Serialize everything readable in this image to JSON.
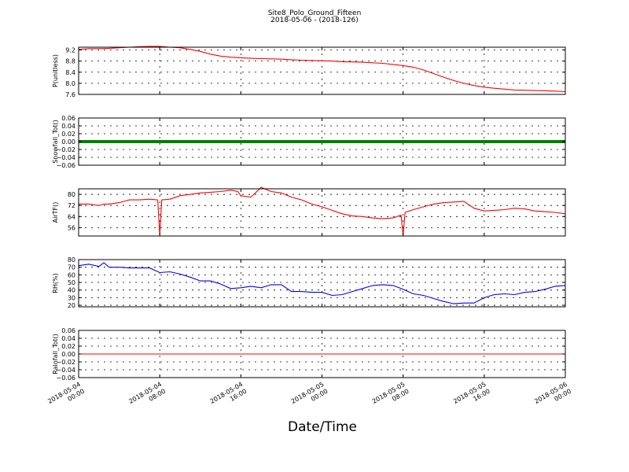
{
  "figure": {
    "title": "Site8_Polo_Ground_Fifteen",
    "subtitle": "2018-05-06 - (2018-126)",
    "xlabel": "Date/Time",
    "x_tick_labels": [
      [
        "2018-05-04",
        "00:00"
      ],
      [
        "2018-05-04",
        "08:00"
      ],
      [
        "2018-05-04",
        "16:00"
      ],
      [
        "2018-05-05",
        "00:00"
      ],
      [
        "2018-05-05",
        "08:00"
      ],
      [
        "2018-05-05",
        "16:00"
      ],
      [
        "2018-05-06",
        "00:00"
      ]
    ],
    "x_range_hours": [
      0,
      48
    ]
  },
  "chart_data": [
    {
      "type": "line",
      "ylabel": "P(unitless)",
      "ylim": [
        7.6,
        9.3
      ],
      "yticks": [
        7.6,
        8.0,
        8.4,
        8.8,
        9.2
      ],
      "ytick_labels": [
        "7.6",
        "8.0",
        "8.4",
        "8.8",
        "9.2"
      ],
      "grid": true,
      "series": [
        {
          "color": "#ff0000",
          "style": "line",
          "x": [
            0,
            1,
            2,
            3,
            4,
            5,
            6,
            7,
            8,
            9,
            10,
            11,
            12,
            13,
            14,
            15,
            16,
            17,
            18,
            19,
            20,
            21,
            22,
            23,
            24,
            25,
            26,
            27,
            28,
            29,
            30,
            31,
            32,
            33,
            34,
            35,
            36,
            37,
            38,
            39,
            40,
            41,
            42,
            43,
            44,
            45,
            46,
            47,
            48
          ],
          "y": [
            9.22,
            9.25,
            9.25,
            9.26,
            9.28,
            9.3,
            9.32,
            9.33,
            9.33,
            9.3,
            9.28,
            9.22,
            9.15,
            9.05,
            8.98,
            8.94,
            8.92,
            8.9,
            8.89,
            8.88,
            8.87,
            8.85,
            8.83,
            8.82,
            8.81,
            8.8,
            8.78,
            8.77,
            8.76,
            8.74,
            8.72,
            8.68,
            8.64,
            8.58,
            8.48,
            8.35,
            8.22,
            8.1,
            8.0,
            7.92,
            7.86,
            7.82,
            7.79,
            7.76,
            7.75,
            7.74,
            7.73,
            7.72,
            7.7
          ]
        }
      ]
    },
    {
      "type": "line",
      "ylabel": "Snowfall_Tot()",
      "ylim": [
        -0.06,
        0.06
      ],
      "yticks": [
        -0.06,
        -0.04,
        -0.02,
        0.0,
        0.02,
        0.04,
        0.06
      ],
      "ytick_labels": [
        "−0.06",
        "−0.04",
        "−0.02",
        "0.00",
        "0.02",
        "0.04",
        "0.06"
      ],
      "grid": true,
      "series": [
        {
          "color": "#008000",
          "style": "dots",
          "x": [
            0,
            48
          ],
          "y": [
            0.0,
            0.0
          ]
        }
      ]
    },
    {
      "type": "line",
      "ylabel": "AirTF()",
      "ylim": [
        50,
        84
      ],
      "yticks": [
        56,
        64,
        72,
        80
      ],
      "ytick_labels": [
        "56",
        "64",
        "72",
        "80"
      ],
      "grid": true,
      "series": [
        {
          "color": "#ff0000",
          "style": "line",
          "x": [
            0,
            1,
            2,
            2.5,
            3,
            4,
            5,
            6,
            7,
            7.8,
            8.0,
            8.2,
            9,
            10,
            11,
            12,
            13,
            14,
            15,
            15.7,
            16,
            17,
            18,
            19,
            20,
            21,
            22,
            23,
            24,
            25,
            26,
            27,
            28,
            29,
            30,
            31,
            31.8,
            32.0,
            32.2,
            33,
            34,
            35,
            36,
            37,
            38,
            39,
            40,
            41,
            42,
            43,
            44,
            45,
            46,
            47,
            48
          ],
          "y": [
            73,
            73,
            72,
            73,
            73,
            74,
            76,
            76,
            76.5,
            76,
            50.5,
            76,
            76.5,
            79,
            80,
            81,
            81.5,
            82,
            83,
            82,
            79,
            78,
            85,
            82,
            81,
            78,
            76,
            73,
            71,
            68.5,
            66,
            64.5,
            64,
            63,
            62.5,
            63,
            65,
            50.5,
            67,
            69,
            71,
            73,
            74,
            74.5,
            75,
            70,
            68,
            68.5,
            69,
            70,
            69.5,
            68,
            67.5,
            67,
            66
          ]
        }
      ]
    },
    {
      "type": "line",
      "ylabel": "RH(%)",
      "ylim": [
        18,
        80
      ],
      "yticks": [
        20,
        30,
        40,
        50,
        60,
        70,
        80
      ],
      "ytick_labels": [
        "20",
        "30",
        "40",
        "50",
        "60",
        "70",
        "80"
      ],
      "grid": true,
      "series": [
        {
          "color": "#0000ff",
          "style": "line",
          "x": [
            0,
            1,
            2,
            2.5,
            3,
            4,
            5,
            6,
            7,
            8,
            9,
            10,
            11,
            12,
            13,
            14,
            15,
            16,
            17,
            18,
            19,
            20,
            21,
            22,
            23,
            24,
            25,
            26,
            27,
            28,
            29,
            30,
            31,
            32,
            33,
            34,
            35,
            36,
            37,
            38,
            39,
            40,
            41,
            42,
            43,
            44,
            45,
            46,
            47,
            48
          ],
          "y": [
            72,
            74,
            71,
            76,
            70,
            70,
            69,
            69,
            69,
            63,
            64,
            61,
            57,
            52,
            52,
            48,
            42,
            43,
            45,
            43,
            47,
            47,
            38,
            38,
            37,
            37,
            33,
            34,
            38,
            42,
            46,
            47,
            46,
            41,
            35,
            33,
            29,
            25,
            22,
            23,
            23,
            30,
            34,
            35,
            34,
            37,
            38,
            41,
            45,
            46
          ]
        }
      ]
    },
    {
      "type": "line",
      "ylabel": "Rainfall_Tot()",
      "ylim": [
        -0.06,
        0.06
      ],
      "yticks": [
        -0.06,
        -0.04,
        -0.02,
        0.0,
        0.02,
        0.04,
        0.06
      ],
      "ytick_labels": [
        "−0.06",
        "−0.04",
        "−0.02",
        "0.00",
        "0.02",
        "0.04",
        "0.06"
      ],
      "grid": true,
      "series": [
        {
          "color": "#ff0000",
          "style": "line",
          "x": [
            0,
            48
          ],
          "y": [
            0.0,
            0.0
          ]
        }
      ]
    }
  ]
}
